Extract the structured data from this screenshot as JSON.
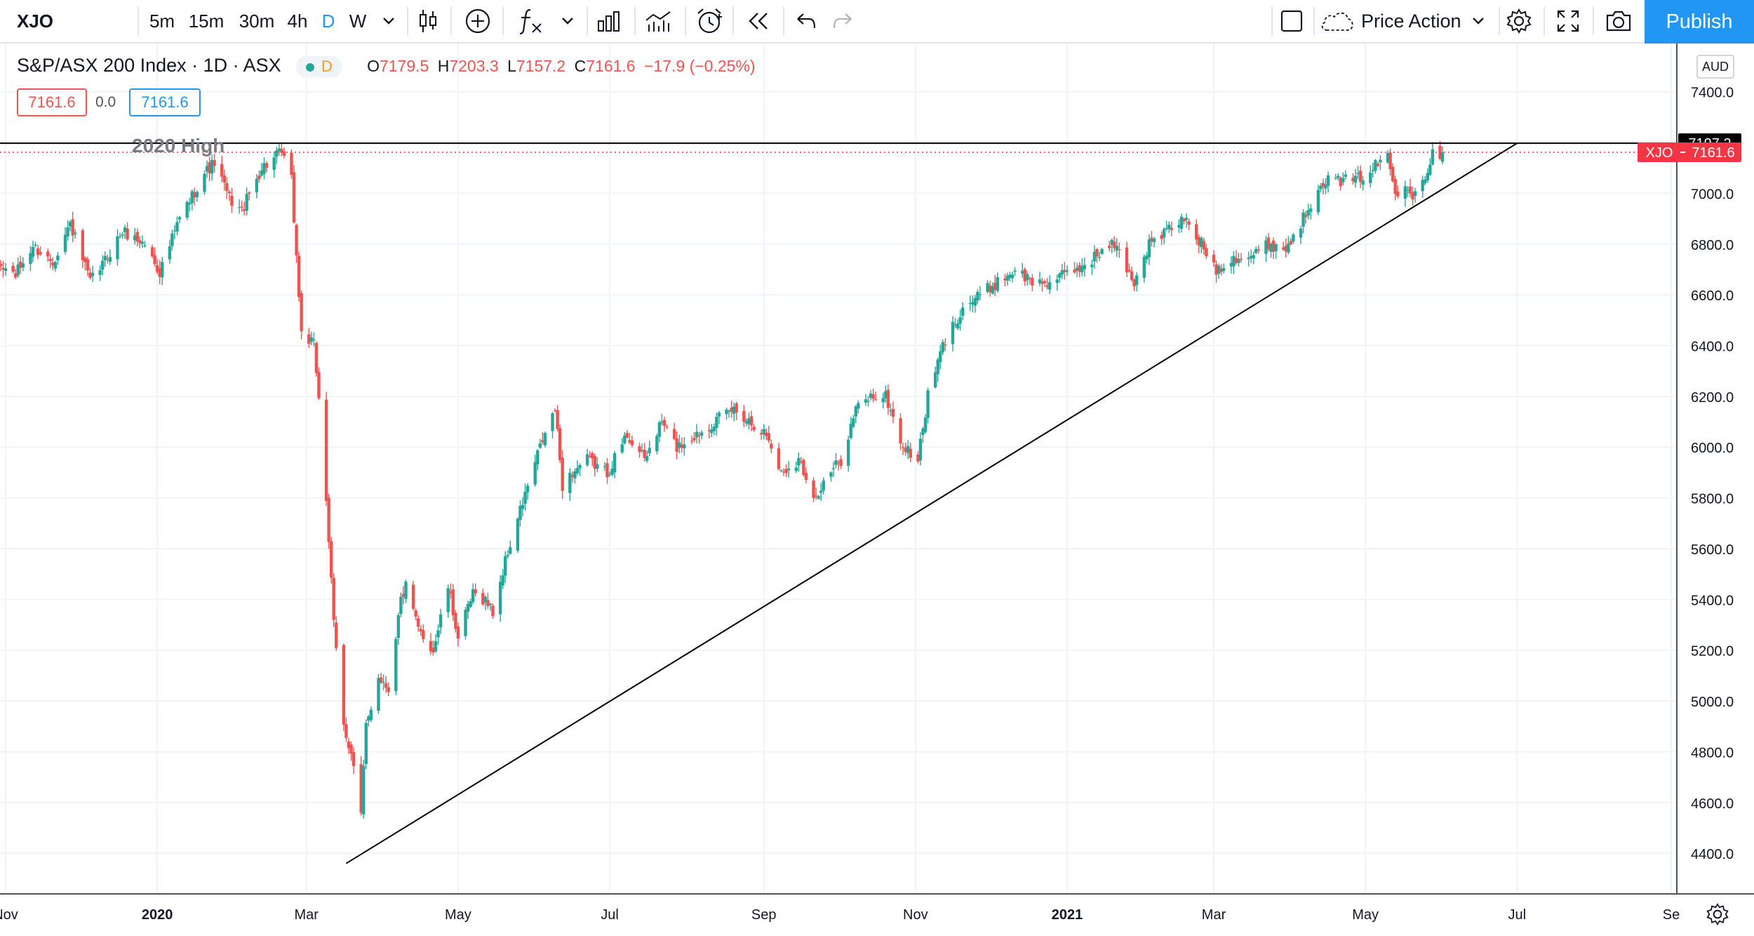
{
  "toolbar": {
    "symbol": "XJO",
    "intervals": [
      "5m",
      "15m",
      "30m",
      "4h",
      "D",
      "W"
    ],
    "active_interval": "D",
    "layout_name": "Price Action",
    "publish_label": "Publish",
    "icons": [
      "chevron-down-icon",
      "candles-icon",
      "plus-circle-icon",
      "fx-icon",
      "chevron-down-icon",
      "bar-chart-icon",
      "indicators-icon",
      "alarm-icon",
      "rewind-icon",
      "undo-icon",
      "redo-icon",
      "square-icon",
      "cloud-icon",
      "gear-icon",
      "fullscreen-icon",
      "camera-icon"
    ],
    "accent_color": "#2196f3"
  },
  "legend": {
    "title": "S&P/ASX 200 Index · 1D · ASX",
    "badge": "D",
    "o_label": "O",
    "o_value": "7179.5",
    "h_label": "H",
    "h_value": "7203.3",
    "l_label": "L",
    "l_value": "7157.2",
    "c_label": "C",
    "c_value": "7161.6",
    "change": "−17.9 (−0.25%)",
    "bid": "7161.6",
    "spread": "0.0",
    "ask": "7161.6"
  },
  "chart_data": {
    "type": "candlestick",
    "title": "S&P/ASX 200 Index · 1D · ASX",
    "currency": "AUD",
    "x_tick_labels": [
      "Nov",
      "2020",
      "Mar",
      "May",
      "Jul",
      "Sep",
      "Nov",
      "2021",
      "Mar",
      "May",
      "Jul",
      "Se"
    ],
    "x_tick_dates": [
      "2019-11-01",
      "2020-01-01",
      "2020-03-01",
      "2020-05-01",
      "2020-07-01",
      "2020-09-01",
      "2020-11-01",
      "2021-01-01",
      "2021-03-01",
      "2021-05-01",
      "2021-07-01",
      "2021-09-01"
    ],
    "y_ticks": [
      4400,
      4600,
      4800,
      5000,
      5200,
      5400,
      5600,
      5800,
      6000,
      6200,
      6400,
      6600,
      6800,
      7000,
      7200,
      7400
    ],
    "y_tick_labels": [
      "4400.0",
      "4600.0",
      "4800.0",
      "5000.0",
      "5200.0",
      "5400.0",
      "5600.0",
      "5800.0",
      "6000.0",
      "6200.0",
      "6400.0",
      "6600.0",
      "6800.0",
      "7000.0",
      "7200.0",
      "7400.0"
    ],
    "ylim": [
      4240,
      7590
    ],
    "up_color": "#26a69a",
    "down_color": "#ef5350",
    "series_start": "2019-10-28",
    "series_end": "2021-06-01",
    "keypoints": [
      [
        "2019-10-28",
        6720
      ],
      [
        "2019-11-05",
        6680
      ],
      [
        "2019-11-12",
        6790
      ],
      [
        "2019-11-20",
        6730
      ],
      [
        "2019-11-27",
        6880
      ],
      [
        "2019-12-05",
        6650
      ],
      [
        "2019-12-10",
        6720
      ],
      [
        "2019-12-18",
        6850
      ],
      [
        "2019-12-27",
        6800
      ],
      [
        "2020-01-02",
        6690
      ],
      [
        "2020-01-10",
        6900
      ],
      [
        "2020-01-20",
        7080
      ],
      [
        "2020-01-24",
        7120
      ],
      [
        "2020-01-30",
        6980
      ],
      [
        "2020-02-04",
        6930
      ],
      [
        "2020-02-12",
        7100
      ],
      [
        "2020-02-20",
        7160
      ],
      [
        "2020-02-24",
        7050
      ],
      [
        "2020-02-28",
        6450
      ],
      [
        "2020-03-04",
        6400
      ],
      [
        "2020-03-06",
        6200
      ],
      [
        "2020-03-09",
        5800
      ],
      [
        "2020-03-12",
        5300
      ],
      [
        "2020-03-16",
        4900
      ],
      [
        "2020-03-19",
        4800
      ],
      [
        "2020-03-23",
        4550
      ],
      [
        "2020-03-25",
        4900
      ],
      [
        "2020-03-30",
        5100
      ],
      [
        "2020-04-03",
        5050
      ],
      [
        "2020-04-08",
        5400
      ],
      [
        "2020-04-10",
        5450
      ],
      [
        "2020-04-15",
        5280
      ],
      [
        "2020-04-21",
        5200
      ],
      [
        "2020-04-27",
        5450
      ],
      [
        "2020-05-01",
        5250
      ],
      [
        "2020-05-07",
        5420
      ],
      [
        "2020-05-12",
        5400
      ],
      [
        "2020-05-15",
        5350
      ],
      [
        "2020-05-20",
        5550
      ],
      [
        "2020-05-26",
        5750
      ],
      [
        "2020-06-03",
        6000
      ],
      [
        "2020-06-09",
        6150
      ],
      [
        "2020-06-12",
        5850
      ],
      [
        "2020-06-16",
        5900
      ],
      [
        "2020-06-22",
        5950
      ],
      [
        "2020-06-30",
        5900
      ],
      [
        "2020-07-08",
        6050
      ],
      [
        "2020-07-15",
        5950
      ],
      [
        "2020-07-22",
        6100
      ],
      [
        "2020-07-28",
        6000
      ],
      [
        "2020-08-05",
        6050
      ],
      [
        "2020-08-12",
        6100
      ],
      [
        "2020-08-20",
        6150
      ],
      [
        "2020-08-27",
        6100
      ],
      [
        "2020-09-02",
        6050
      ],
      [
        "2020-09-08",
        5900
      ],
      [
        "2020-09-15",
        5950
      ],
      [
        "2020-09-22",
        5800
      ],
      [
        "2020-09-28",
        5900
      ],
      [
        "2020-10-02",
        5950
      ],
      [
        "2020-10-08",
        6150
      ],
      [
        "2020-10-14",
        6200
      ],
      [
        "2020-10-20",
        6200
      ],
      [
        "2020-10-27",
        6000
      ],
      [
        "2020-11-02",
        5950
      ],
      [
        "2020-11-06",
        6200
      ],
      [
        "2020-11-12",
        6400
      ],
      [
        "2020-11-20",
        6550
      ],
      [
        "2020-11-27",
        6600
      ],
      [
        "2020-12-04",
        6650
      ],
      [
        "2020-12-11",
        6700
      ],
      [
        "2020-12-18",
        6650
      ],
      [
        "2020-12-25",
        6650
      ],
      [
        "2021-01-05",
        6700
      ],
      [
        "2021-01-12",
        6750
      ],
      [
        "2021-01-20",
        6800
      ],
      [
        "2021-01-28",
        6650
      ],
      [
        "2021-02-03",
        6800
      ],
      [
        "2021-02-10",
        6850
      ],
      [
        "2021-02-17",
        6900
      ],
      [
        "2021-02-24",
        6800
      ],
      [
        "2021-03-02",
        6700
      ],
      [
        "2021-03-09",
        6750
      ],
      [
        "2021-03-16",
        6750
      ],
      [
        "2021-03-23",
        6800
      ],
      [
        "2021-03-30",
        6780
      ],
      [
        "2021-04-06",
        6900
      ],
      [
        "2021-04-13",
        7050
      ],
      [
        "2021-04-20",
        7050
      ],
      [
        "2021-04-27",
        7050
      ],
      [
        "2021-05-04",
        7100
      ],
      [
        "2021-05-10",
        7150
      ],
      [
        "2021-05-13",
        7000
      ],
      [
        "2021-05-17",
        7050
      ],
      [
        "2021-05-20",
        7000
      ],
      [
        "2021-05-24",
        7050
      ],
      [
        "2021-05-28",
        7150
      ],
      [
        "2021-06-01",
        7162
      ]
    ],
    "trendline": {
      "start": [
        "2020-03-17",
        4360
      ],
      "end": [
        "2021-07-01",
        7197.2
      ]
    },
    "resistance": {
      "level": 7197.2,
      "label": "7197.2",
      "line_color": "#000000"
    },
    "last_price": {
      "value": 7161.6,
      "label": "7161.6",
      "symbol": "XJO",
      "color": "#f23645"
    },
    "annotations": [
      {
        "text": "2020 High"
      }
    ]
  }
}
